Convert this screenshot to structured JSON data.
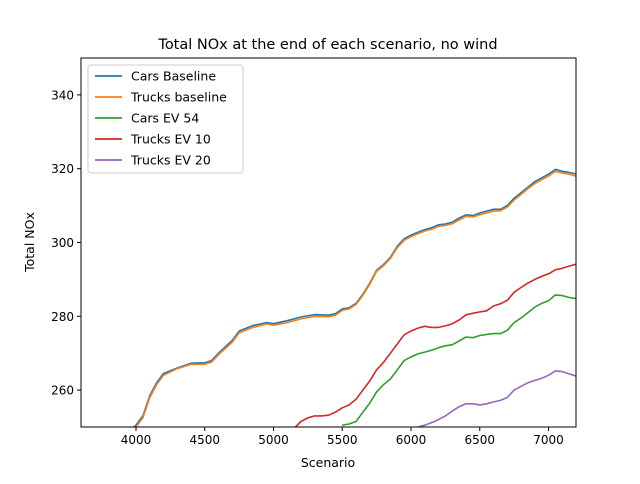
{
  "chart_data": {
    "type": "line",
    "title": "Total NOx at the end of each scenario, no wind",
    "xlabel": "Scenario",
    "ylabel": "Total NOx",
    "xlim": [
      3600,
      7200
    ],
    "ylim": [
      250,
      350
    ],
    "xticks": [
      4000,
      4500,
      5000,
      5500,
      6000,
      6500,
      7000
    ],
    "yticks": [
      260,
      280,
      300,
      320,
      340
    ],
    "grid": false,
    "legend_position": "top-left",
    "series": [
      {
        "name": "Cars Baseline",
        "color": "#1f77b4",
        "points": [
          [
            3950,
            249
          ],
          [
            4000,
            250.5
          ],
          [
            4050,
            253
          ],
          [
            4100,
            258.5
          ],
          [
            4150,
            262
          ],
          [
            4200,
            264.5
          ],
          [
            4300,
            266
          ],
          [
            4400,
            267.3
          ],
          [
            4500,
            267.4
          ],
          [
            4550,
            268
          ],
          [
            4600,
            270
          ],
          [
            4700,
            273.5
          ],
          [
            4750,
            276
          ],
          [
            4850,
            277.5
          ],
          [
            4950,
            278.3
          ],
          [
            5000,
            278
          ],
          [
            5100,
            278.8
          ],
          [
            5200,
            279.8
          ],
          [
            5300,
            280.5
          ],
          [
            5400,
            280.3
          ],
          [
            5450,
            280.7
          ],
          [
            5500,
            282
          ],
          [
            5550,
            282.3
          ],
          [
            5600,
            283.5
          ],
          [
            5650,
            286
          ],
          [
            5700,
            289
          ],
          [
            5750,
            292.5
          ],
          [
            5800,
            294
          ],
          [
            5850,
            296
          ],
          [
            5900,
            299
          ],
          [
            5950,
            301
          ],
          [
            6000,
            302
          ],
          [
            6050,
            302.8
          ],
          [
            6100,
            303.5
          ],
          [
            6150,
            304
          ],
          [
            6200,
            304.8
          ],
          [
            6250,
            305
          ],
          [
            6300,
            305.5
          ],
          [
            6350,
            306.6
          ],
          [
            6400,
            307.5
          ],
          [
            6450,
            307.3
          ],
          [
            6500,
            308
          ],
          [
            6550,
            308.5
          ],
          [
            6600,
            309
          ],
          [
            6650,
            309
          ],
          [
            6700,
            310
          ],
          [
            6750,
            312
          ],
          [
            6800,
            313.5
          ],
          [
            6850,
            315
          ],
          [
            6900,
            316.5
          ],
          [
            6950,
            317.5
          ],
          [
            7000,
            318.5
          ],
          [
            7050,
            319.8
          ],
          [
            7100,
            319.3
          ],
          [
            7150,
            319
          ],
          [
            7200,
            318.6
          ]
        ]
      },
      {
        "name": "Trucks baseline",
        "color": "#ff7f0e",
        "points": [
          [
            3950,
            248.5
          ],
          [
            4000,
            250
          ],
          [
            4050,
            252.5
          ],
          [
            4100,
            258
          ],
          [
            4150,
            261.5
          ],
          [
            4200,
            264
          ],
          [
            4300,
            265.8
          ],
          [
            4400,
            267
          ],
          [
            4500,
            267
          ],
          [
            4550,
            267.6
          ],
          [
            4600,
            269.6
          ],
          [
            4700,
            273
          ],
          [
            4750,
            275.5
          ],
          [
            4850,
            277
          ],
          [
            4950,
            277.9
          ],
          [
            5000,
            277.6
          ],
          [
            5100,
            278.3
          ],
          [
            5200,
            279.3
          ],
          [
            5300,
            280
          ],
          [
            5400,
            279.9
          ],
          [
            5450,
            280.3
          ],
          [
            5500,
            281.6
          ],
          [
            5550,
            282
          ],
          [
            5600,
            283.2
          ],
          [
            5650,
            285.7
          ],
          [
            5700,
            288.7
          ],
          [
            5750,
            292.2
          ],
          [
            5800,
            293.7
          ],
          [
            5850,
            295.7
          ],
          [
            5900,
            298.6
          ],
          [
            5950,
            300.6
          ],
          [
            6000,
            301.6
          ],
          [
            6050,
            302.4
          ],
          [
            6100,
            303.1
          ],
          [
            6150,
            303.6
          ],
          [
            6200,
            304.4
          ],
          [
            6250,
            304.6
          ],
          [
            6300,
            305.1
          ],
          [
            6350,
            306.1
          ],
          [
            6400,
            307.1
          ],
          [
            6450,
            306.9
          ],
          [
            6500,
            307.5
          ],
          [
            6550,
            308
          ],
          [
            6600,
            308.5
          ],
          [
            6650,
            308.6
          ],
          [
            6700,
            309.6
          ],
          [
            6750,
            311.5
          ],
          [
            6800,
            313
          ],
          [
            6850,
            314.6
          ],
          [
            6900,
            316
          ],
          [
            6950,
            317
          ],
          [
            7000,
            318
          ],
          [
            7050,
            319.3
          ],
          [
            7100,
            318.8
          ],
          [
            7150,
            318.5
          ],
          [
            7200,
            318
          ]
        ]
      },
      {
        "name": "Cars EV 54",
        "color": "#2ca02c",
        "points": [
          [
            5500,
            250.5
          ],
          [
            5550,
            250.8
          ],
          [
            5600,
            251.5
          ],
          [
            5650,
            254
          ],
          [
            5700,
            256.5
          ],
          [
            5750,
            259.5
          ],
          [
            5800,
            261.5
          ],
          [
            5850,
            263
          ],
          [
            5900,
            265.5
          ],
          [
            5950,
            268
          ],
          [
            6000,
            269
          ],
          [
            6050,
            269.8
          ],
          [
            6100,
            270.3
          ],
          [
            6150,
            270.8
          ],
          [
            6200,
            271.5
          ],
          [
            6250,
            272
          ],
          [
            6300,
            272.3
          ],
          [
            6350,
            273.3
          ],
          [
            6400,
            274.4
          ],
          [
            6450,
            274.2
          ],
          [
            6500,
            274.8
          ],
          [
            6550,
            275.1
          ],
          [
            6600,
            275.3
          ],
          [
            6650,
            275.3
          ],
          [
            6700,
            276.2
          ],
          [
            6750,
            278.3
          ],
          [
            6800,
            279.5
          ],
          [
            6850,
            281
          ],
          [
            6900,
            282.5
          ],
          [
            6950,
            283.5
          ],
          [
            7000,
            284.2
          ],
          [
            7050,
            285.8
          ],
          [
            7100,
            285.6
          ],
          [
            7150,
            285.1
          ],
          [
            7200,
            284.8
          ]
        ]
      },
      {
        "name": "Trucks EV 10",
        "color": "#d62728",
        "points": [
          [
            5160,
            250
          ],
          [
            5200,
            251.5
          ],
          [
            5250,
            252.5
          ],
          [
            5300,
            253
          ],
          [
            5350,
            253
          ],
          [
            5400,
            253.2
          ],
          [
            5450,
            254
          ],
          [
            5500,
            255.2
          ],
          [
            5550,
            256
          ],
          [
            5600,
            257.5
          ],
          [
            5650,
            260
          ],
          [
            5700,
            262.5
          ],
          [
            5750,
            265.5
          ],
          [
            5800,
            267.5
          ],
          [
            5850,
            270
          ],
          [
            5900,
            272.5
          ],
          [
            5950,
            275
          ],
          [
            6000,
            276
          ],
          [
            6050,
            276.8
          ],
          [
            6100,
            277.3
          ],
          [
            6150,
            277
          ],
          [
            6200,
            277
          ],
          [
            6250,
            277.4
          ],
          [
            6300,
            278
          ],
          [
            6350,
            279
          ],
          [
            6400,
            280.4
          ],
          [
            6450,
            280.8
          ],
          [
            6500,
            281.2
          ],
          [
            6550,
            281.5
          ],
          [
            6600,
            282.8
          ],
          [
            6650,
            283.4
          ],
          [
            6700,
            284.3
          ],
          [
            6750,
            286.5
          ],
          [
            6800,
            287.8
          ],
          [
            6850,
            289
          ],
          [
            6900,
            290
          ],
          [
            6950,
            290.8
          ],
          [
            7000,
            291.5
          ],
          [
            7050,
            292.6
          ],
          [
            7100,
            293
          ],
          [
            7150,
            293.6
          ],
          [
            7200,
            294.1
          ]
        ]
      },
      {
        "name": "Trucks EV 20",
        "color": "#9467bd",
        "points": [
          [
            6000,
            249.5
          ],
          [
            6050,
            250
          ],
          [
            6100,
            250.5
          ],
          [
            6150,
            251.2
          ],
          [
            6200,
            252
          ],
          [
            6250,
            253
          ],
          [
            6300,
            254.3
          ],
          [
            6350,
            255.5
          ],
          [
            6400,
            256.3
          ],
          [
            6450,
            256.3
          ],
          [
            6500,
            256
          ],
          [
            6550,
            256.3
          ],
          [
            6600,
            256.8
          ],
          [
            6650,
            257.2
          ],
          [
            6700,
            258
          ],
          [
            6750,
            260
          ],
          [
            6800,
            261
          ],
          [
            6850,
            262
          ],
          [
            6900,
            262.6
          ],
          [
            6950,
            263.2
          ],
          [
            7000,
            264
          ],
          [
            7050,
            265.2
          ],
          [
            7100,
            265
          ],
          [
            7150,
            264.4
          ],
          [
            7200,
            263.8
          ]
        ]
      }
    ]
  }
}
